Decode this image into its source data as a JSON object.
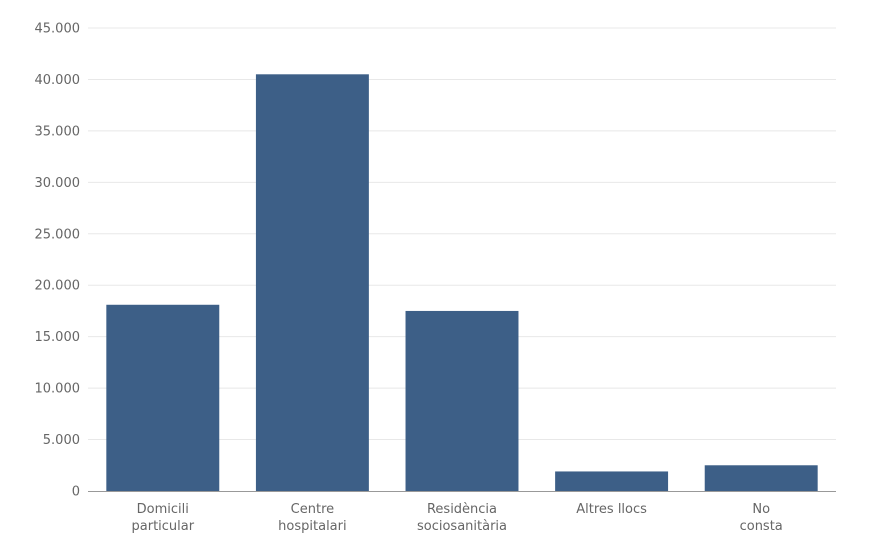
{
  "chart_data": {
    "type": "bar",
    "categories": [
      [
        "Domicili",
        "particular"
      ],
      [
        "Centre",
        "hospitalari"
      ],
      [
        "Residència",
        "sociosanitària"
      ],
      [
        "Altres llocs"
      ],
      [
        "No",
        "consta"
      ]
    ],
    "values": [
      18100,
      40500,
      17500,
      1900,
      2500
    ],
    "y_ticks": [
      "0",
      "5.000",
      "10.000",
      "15.000",
      "20.000",
      "25.000",
      "30.000",
      "35.000",
      "40.000",
      "45.000"
    ],
    "ylim": [
      0,
      45000
    ],
    "grid": true,
    "legend": "none",
    "colors": {
      "bar": "#3d5f87",
      "grid": "#e8e8e8",
      "axis": "#999999",
      "text": "#666666"
    }
  }
}
